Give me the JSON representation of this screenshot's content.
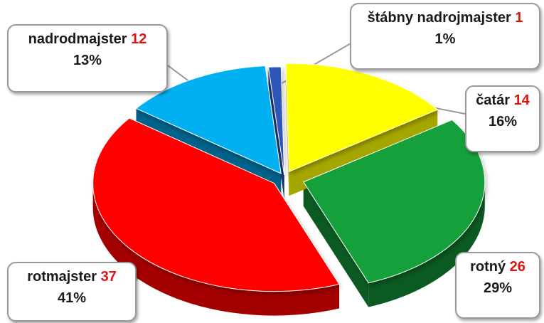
{
  "chart_data": {
    "type": "pie",
    "title": "",
    "style": "3d-exploded",
    "slices": [
      {
        "label": "štábny nadrojmajster",
        "count": "1",
        "percent": "1%",
        "value": 1,
        "color": "#2f55b8",
        "side_color": "#1d3577"
      },
      {
        "label": "čatár",
        "count": "14",
        "percent": "16%",
        "value": 14,
        "color": "#ffff00",
        "side_color": "#a6a600"
      },
      {
        "label": "rotný",
        "count": "26",
        "percent": "29%",
        "value": 26,
        "color": "#13a03a",
        "side_color": "#0b5a22"
      },
      {
        "label": "rotmajster",
        "count": "37",
        "percent": "41%",
        "value": 37,
        "color": "#ff0000",
        "side_color": "#a30000"
      },
      {
        "label": "nadrodmajster",
        "count": "12",
        "percent": "13%",
        "value": 12,
        "color": "#00b0f0",
        "side_color": "#00628a"
      }
    ]
  }
}
